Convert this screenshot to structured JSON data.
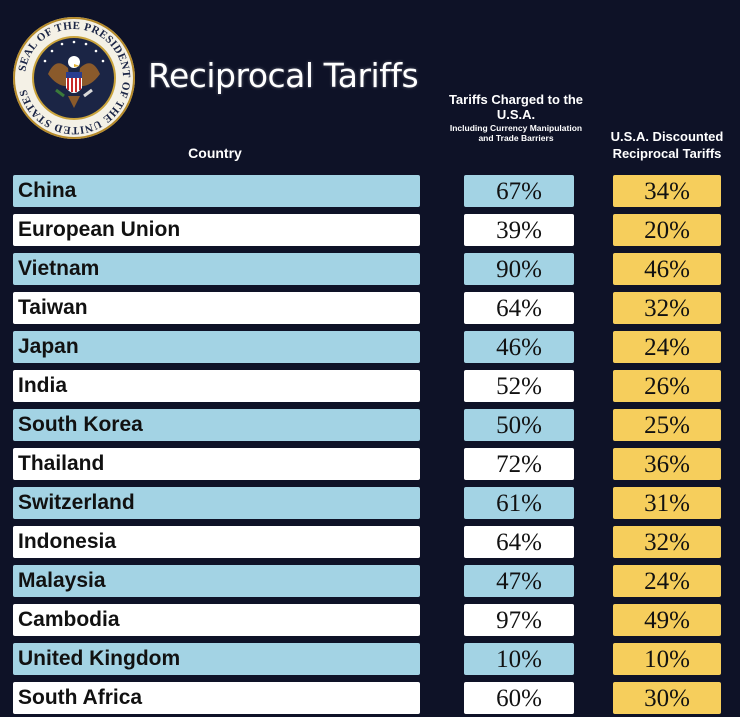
{
  "title": "Reciprocal Tariffs",
  "seal_text": "SEAL OF THE PRESIDENT OF THE UNITED STATES",
  "colors": {
    "background": "#0e1227",
    "row_blue": "#a3d3e4",
    "row_white": "#ffffff",
    "discount_yellow": "#f6ce5c"
  },
  "chart_data": {
    "type": "table",
    "title": "Reciprocal Tariffs",
    "columns": [
      {
        "label": "Country"
      },
      {
        "label": "Tariffs Charged to the U.S.A.",
        "sublabel": "Including Currency Manipulation and Trade Barriers"
      },
      {
        "label": "U.S.A. Discounted Reciprocal Tariffs"
      }
    ],
    "rows": [
      {
        "country": "China",
        "charged": "67%",
        "discounted": "34%"
      },
      {
        "country": "European Union",
        "charged": "39%",
        "discounted": "20%"
      },
      {
        "country": "Vietnam",
        "charged": "90%",
        "discounted": "46%"
      },
      {
        "country": "Taiwan",
        "charged": "64%",
        "discounted": "32%"
      },
      {
        "country": "Japan",
        "charged": "46%",
        "discounted": "24%"
      },
      {
        "country": "India",
        "charged": "52%",
        "discounted": "26%"
      },
      {
        "country": "South Korea",
        "charged": "50%",
        "discounted": "25%"
      },
      {
        "country": "Thailand",
        "charged": "72%",
        "discounted": "36%"
      },
      {
        "country": "Switzerland",
        "charged": "61%",
        "discounted": "31%"
      },
      {
        "country": "Indonesia",
        "charged": "64%",
        "discounted": "32%"
      },
      {
        "country": "Malaysia",
        "charged": "47%",
        "discounted": "24%"
      },
      {
        "country": "Cambodia",
        "charged": "97%",
        "discounted": "49%"
      },
      {
        "country": "United Kingdom",
        "charged": "10%",
        "discounted": "10%"
      },
      {
        "country": "South Africa",
        "charged": "60%",
        "discounted": "30%"
      }
    ]
  }
}
